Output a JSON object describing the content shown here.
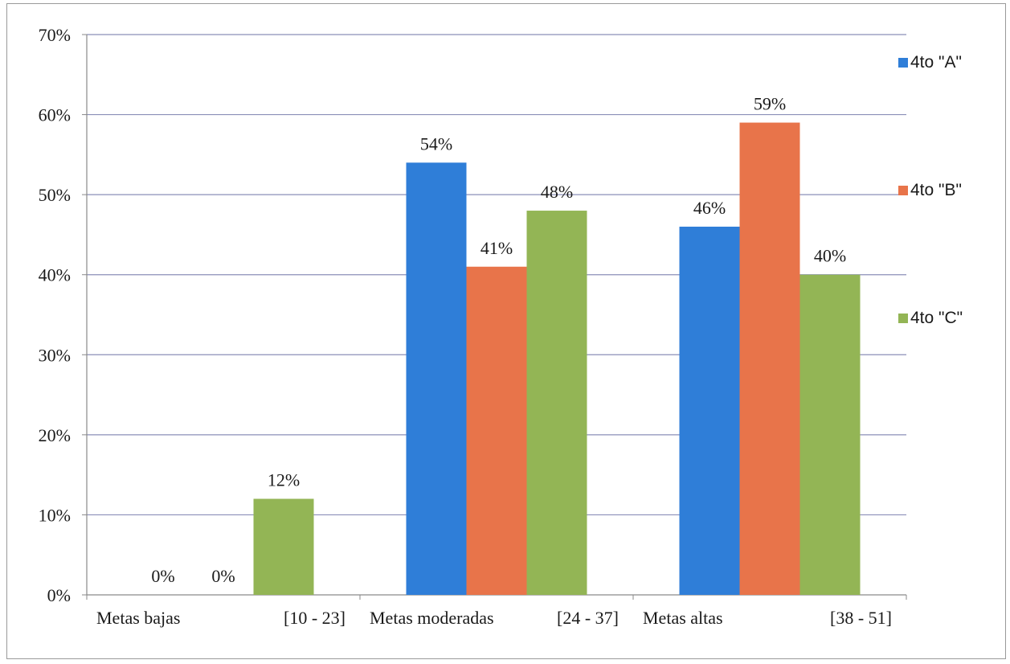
{
  "chart_data": {
    "type": "bar",
    "title": "",
    "xlabel": "",
    "ylabel": "",
    "ylim": [
      0,
      0.7
    ],
    "yticks": [
      0,
      0.1,
      0.2,
      0.3,
      0.4,
      0.5,
      0.6,
      0.7
    ],
    "ytick_labels": [
      "0%",
      "10%",
      "20%",
      "30%",
      "40%",
      "50%",
      "60%",
      "70%"
    ],
    "grid": true,
    "legend_position": "right",
    "categories": [
      {
        "name": "Metas bajas",
        "range": "[10 - 23]"
      },
      {
        "name": "Metas moderadas",
        "range": "[24 - 37]"
      },
      {
        "name": "Metas altas",
        "range": "[38 - 51]"
      }
    ],
    "series": [
      {
        "name": "4to \"A\"",
        "color": "#2f7ed8",
        "values": [
          0,
          0.54,
          0.46
        ],
        "labels": [
          "0%",
          "54%",
          "46%"
        ]
      },
      {
        "name": "4to \"B\"",
        "color": "#e8744a",
        "values": [
          0,
          0.41,
          0.59
        ],
        "labels": [
          "0%",
          "41%",
          "59%"
        ]
      },
      {
        "name": "4to \"C\"",
        "color": "#93b555",
        "values": [
          0.12,
          0.48,
          0.4
        ],
        "labels": [
          "12%",
          "48%",
          "40%"
        ]
      }
    ]
  }
}
